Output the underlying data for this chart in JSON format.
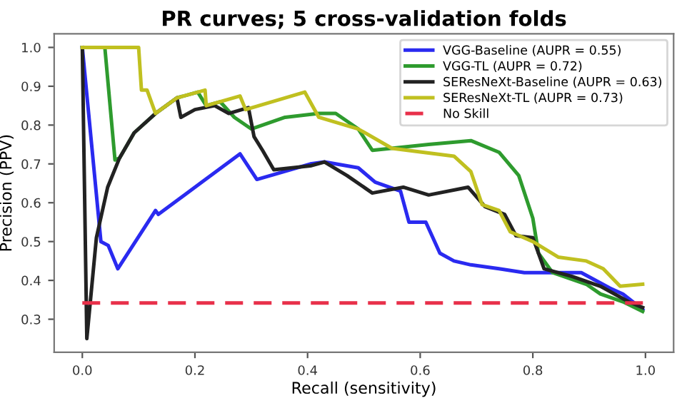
{
  "chart_data": {
    "type": "line",
    "title": "PR curves; 5 cross-validation folds",
    "xlabel": "Recall (sensitivity)",
    "ylabel": "Precision (PPV)",
    "xlim": [
      -0.05,
      1.05
    ],
    "ylim": [
      0.215,
      1.035
    ],
    "xticks": [
      {
        "value": 0,
        "label": "0.0"
      },
      {
        "value": 0.2,
        "label": "0.2"
      },
      {
        "value": 0.4,
        "label": "0.4"
      },
      {
        "value": 0.6,
        "label": "0.6"
      },
      {
        "value": 0.8,
        "label": "0.8"
      },
      {
        "value": 1,
        "label": "1.0"
      }
    ],
    "yticks": [
      {
        "value": 0.3,
        "label": "0.3"
      },
      {
        "value": 0.4,
        "label": "0.4"
      },
      {
        "value": 0.5,
        "label": "0.5"
      },
      {
        "value": 0.6,
        "label": "0.6"
      },
      {
        "value": 0.7,
        "label": "0.7"
      },
      {
        "value": 0.8,
        "label": "0.8"
      },
      {
        "value": 0.9,
        "label": "0.9"
      },
      {
        "value": 1,
        "label": "1.0"
      }
    ],
    "grid": false,
    "legend": "top right",
    "marker": "none",
    "line_style": "solid",
    "series": [
      {
        "name": "VGG-Baseline (AUPR = 0.55)",
        "color": "#2a2af0",
        "x": [
          0,
          0.033,
          0.046,
          0.063,
          0.13,
          0.135,
          0.28,
          0.31,
          0.405,
          0.43,
          0.49,
          0.52,
          0.565,
          0.58,
          0.61,
          0.635,
          0.66,
          0.69,
          0.74,
          0.785,
          0.886,
          0.937,
          0.96,
          0.995
        ],
        "values": [
          1.0,
          0.5,
          0.49,
          0.43,
          0.58,
          0.57,
          0.726,
          0.66,
          0.7,
          0.705,
          0.69,
          0.653,
          0.63,
          0.55,
          0.55,
          0.47,
          0.45,
          0.44,
          0.43,
          0.42,
          0.42,
          0.38,
          0.365,
          0.325
        ]
      },
      {
        "name": "VGG-TL (AUPR = 0.72)",
        "color": "#2e9b2e",
        "x": [
          0,
          0.04,
          0.058,
          0.066,
          0.092,
          0.13,
          0.168,
          0.205,
          0.22,
          0.245,
          0.27,
          0.3,
          0.36,
          0.42,
          0.45,
          0.49,
          0.515,
          0.615,
          0.69,
          0.74,
          0.775,
          0.8,
          0.81,
          0.835,
          0.895,
          0.92,
          0.96,
          0.995
        ],
        "values": [
          1.0,
          1.0,
          0.71,
          0.715,
          0.78,
          0.83,
          0.87,
          0.885,
          0.85,
          0.86,
          0.82,
          0.79,
          0.82,
          0.83,
          0.83,
          0.79,
          0.735,
          0.75,
          0.76,
          0.73,
          0.67,
          0.56,
          0.47,
          0.42,
          0.39,
          0.365,
          0.345,
          0.32
        ]
      },
      {
        "name": "SEResNeXt-Baseline (AUPR = 0.63)",
        "color": "#222222",
        "x": [
          0,
          0.008,
          0.025,
          0.045,
          0.066,
          0.092,
          0.13,
          0.168,
          0.175,
          0.2,
          0.235,
          0.26,
          0.295,
          0.305,
          0.32,
          0.34,
          0.405,
          0.43,
          0.47,
          0.515,
          0.57,
          0.615,
          0.685,
          0.715,
          0.75,
          0.77,
          0.8,
          0.82,
          0.87,
          0.92,
          0.97,
          0.995
        ],
        "values": [
          1.0,
          0.25,
          0.51,
          0.64,
          0.715,
          0.78,
          0.83,
          0.87,
          0.82,
          0.84,
          0.85,
          0.83,
          0.845,
          0.77,
          0.735,
          0.685,
          0.695,
          0.705,
          0.67,
          0.625,
          0.64,
          0.62,
          0.64,
          0.59,
          0.57,
          0.515,
          0.51,
          0.43,
          0.41,
          0.385,
          0.345,
          0.33
        ]
      },
      {
        "name": "SEResNeXt-TL (AUPR = 0.73)",
        "color": "#c0c020",
        "x": [
          0,
          0.1,
          0.105,
          0.115,
          0.13,
          0.168,
          0.218,
          0.22,
          0.28,
          0.29,
          0.395,
          0.42,
          0.49,
          0.55,
          0.66,
          0.69,
          0.71,
          0.74,
          0.76,
          0.8,
          0.845,
          0.895,
          0.925,
          0.955,
          0.995
        ],
        "values": [
          1.0,
          1.0,
          0.89,
          0.89,
          0.83,
          0.87,
          0.89,
          0.85,
          0.875,
          0.84,
          0.885,
          0.82,
          0.79,
          0.74,
          0.72,
          0.68,
          0.595,
          0.58,
          0.525,
          0.5,
          0.46,
          0.45,
          0.43,
          0.385,
          0.39
        ]
      },
      {
        "name": "No Skill",
        "color": "#e8304a",
        "line_style": "dashed",
        "x": [
          0,
          1
        ],
        "values": [
          0.342,
          0.342
        ]
      }
    ]
  }
}
